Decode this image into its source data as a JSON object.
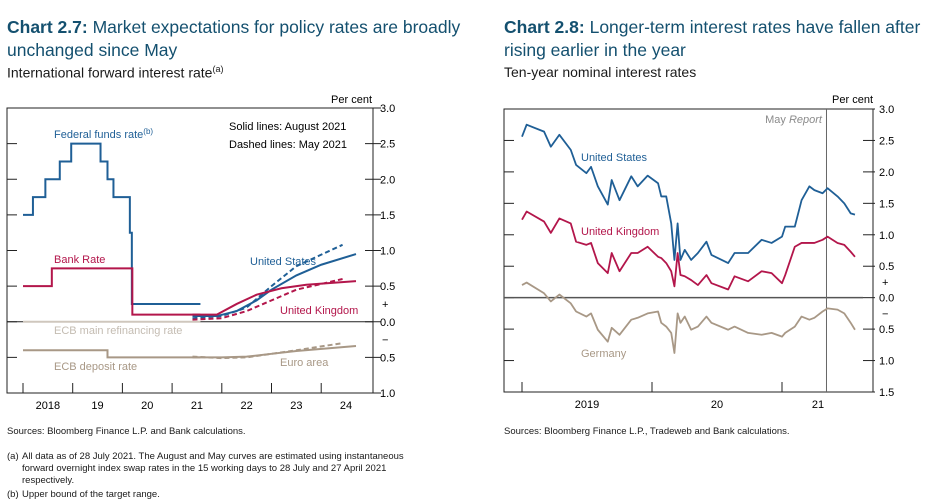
{
  "left": {
    "chart_no": "Chart 2.7:",
    "title": "Market expectations for policy rates are broadly unchanged since May",
    "subtitle": "International forward interest rate",
    "subtitle_note": "(a)",
    "source": "Sources: Bloomberg Finance L.P. and Bank calculations.",
    "footnotes": [
      {
        "label": "(a)",
        "text": "All data as of 28 July 2021. The August and May curves are estimated using instantaneous forward overnight index swap rates in the 15 working days to 28 July and 27 April 2021 respectively."
      },
      {
        "label": "(b)",
        "text": "Upper bound of the target range."
      }
    ]
  },
  "right": {
    "chart_no": "Chart 2.8:",
    "title": "Longer-term interest rates have fallen after rising earlier in the year",
    "subtitle": "Ten-year nominal interest rates",
    "source": "Sources: Bloomberg Finance L.P., Tradeweb and Bank calculations."
  },
  "chart_data": [
    {
      "type": "line",
      "title": "Market expectations for policy rates are broadly unchanged since May",
      "ylabel": "Per cent",
      "ylim": [
        -1.0,
        3.0
      ],
      "xlim": [
        2017.7,
        2024.8
      ],
      "xticks": [
        "2018",
        "19",
        "20",
        "21",
        "22",
        "23",
        "24"
      ],
      "yticks": [
        {
          "v": 3.0,
          "l": "3.0"
        },
        {
          "v": 2.5,
          "l": "2.5"
        },
        {
          "v": 2.0,
          "l": "2.0"
        },
        {
          "v": 1.5,
          "l": "1.5"
        },
        {
          "v": 1.0,
          "l": "1.0"
        },
        {
          "v": 0.5,
          "l": "0.5"
        },
        {
          "v": 0.25,
          "l": "+"
        },
        {
          "v": 0.0,
          "l": "0.0"
        },
        {
          "v": -0.25,
          "l": "−"
        },
        {
          "v": -0.5,
          "l": "0.5"
        },
        {
          "v": -1.0,
          "l": "1.0"
        }
      ],
      "annotations": {
        "solid": "Solid lines: August 2021",
        "dashed": "Dashed lines: May 2021"
      },
      "labels": {
        "ffr": "Federal funds rate",
        "ffr_note": "(b)",
        "bank_rate": "Bank Rate",
        "us": "United States",
        "uk": "United Kingdom",
        "ecb_main": "ECB main refinancing rate",
        "ecb_dep": "ECB deposit rate",
        "euro": "Euro area"
      },
      "colors": {
        "us": "#1f5f96",
        "uk": "#b3164b",
        "ecb_main": "#cfc7bd",
        "euro": "#a89886"
      },
      "series": [
        {
          "name": "Federal funds rate",
          "color": "us",
          "dash": false,
          "step": true,
          "points": [
            [
              2018.0,
              1.5
            ],
            [
              2018.2,
              1.75
            ],
            [
              2018.45,
              2.0
            ],
            [
              2018.74,
              2.25
            ],
            [
              2018.97,
              2.5
            ],
            [
              2019.56,
              2.25
            ],
            [
              2019.7,
              2.0
            ],
            [
              2019.82,
              1.75
            ],
            [
              2020.15,
              1.25
            ],
            [
              2020.19,
              0.25
            ],
            [
              2021.57,
              0.25
            ]
          ]
        },
        {
          "name": "Bank Rate",
          "color": "uk",
          "dash": false,
          "step": true,
          "points": [
            [
              2018.0,
              0.5
            ],
            [
              2018.58,
              0.75
            ],
            [
              2020.15,
              0.75
            ],
            [
              2020.2,
              0.1
            ],
            [
              2021.57,
              0.1
            ]
          ]
        },
        {
          "name": "ECB main refinancing rate",
          "color": "ecb_main",
          "dash": false,
          "step": true,
          "points": [
            [
              2018.0,
              0.0
            ],
            [
              2021.57,
              0.0
            ]
          ]
        },
        {
          "name": "ECB deposit rate",
          "color": "euro",
          "dash": false,
          "step": true,
          "points": [
            [
              2018.0,
              -0.4
            ],
            [
              2019.7,
              -0.5
            ],
            [
              2021.57,
              -0.5
            ]
          ]
        },
        {
          "name": "United States",
          "color": "us",
          "dash": false,
          "step": false,
          "points": [
            [
              2021.41,
              0.08
            ],
            [
              2021.9,
              0.08
            ],
            [
              2022.3,
              0.15
            ],
            [
              2022.7,
              0.3
            ],
            [
              2023.0,
              0.45
            ],
            [
              2023.5,
              0.65
            ],
            [
              2024.0,
              0.8
            ],
            [
              2024.7,
              0.95
            ]
          ]
        },
        {
          "name": "United States",
          "color": "us",
          "dash": true,
          "step": false,
          "points": [
            [
              2021.41,
              0.05
            ],
            [
              2022.0,
              0.08
            ],
            [
              2022.5,
              0.2
            ],
            [
              2023.0,
              0.5
            ],
            [
              2023.5,
              0.78
            ],
            [
              2024.43,
              1.08
            ]
          ]
        },
        {
          "name": "United Kingdom",
          "color": "uk",
          "dash": false,
          "step": false,
          "points": [
            [
              2021.41,
              0.1
            ],
            [
              2021.9,
              0.1
            ],
            [
              2022.3,
              0.25
            ],
            [
              2022.7,
              0.38
            ],
            [
              2023.2,
              0.47
            ],
            [
              2023.7,
              0.52
            ],
            [
              2024.7,
              0.57
            ]
          ]
        },
        {
          "name": "United Kingdom",
          "color": "uk",
          "dash": true,
          "step": false,
          "points": [
            [
              2021.41,
              0.03
            ],
            [
              2022.0,
              0.05
            ],
            [
              2022.5,
              0.15
            ],
            [
              2023.0,
              0.3
            ],
            [
              2023.5,
              0.45
            ],
            [
              2024.43,
              0.6
            ]
          ]
        },
        {
          "name": "Euro area",
          "color": "euro",
          "dash": false,
          "step": false,
          "points": [
            [
              2021.41,
              -0.5
            ],
            [
              2022.0,
              -0.5
            ],
            [
              2022.5,
              -0.49
            ],
            [
              2023.0,
              -0.45
            ],
            [
              2023.5,
              -0.41
            ],
            [
              2024.7,
              -0.34
            ]
          ]
        },
        {
          "name": "Euro area",
          "color": "euro",
          "dash": true,
          "step": false,
          "points": [
            [
              2021.41,
              -0.49
            ],
            [
              2022.0,
              -0.51
            ],
            [
              2022.5,
              -0.5
            ],
            [
              2023.0,
              -0.45
            ],
            [
              2023.5,
              -0.4
            ],
            [
              2024.43,
              -0.3
            ]
          ]
        }
      ]
    },
    {
      "type": "line",
      "title": "Longer-term interest rates have fallen after rising earlier in the year",
      "ylabel": "Per cent",
      "ylim": [
        -1.5,
        3.0
      ],
      "xlim": [
        "2018-09-01",
        "2021-09-01"
      ],
      "xticks": [
        "2019",
        "20",
        "21"
      ],
      "yticks": [
        {
          "v": 3.0,
          "l": "3.0"
        },
        {
          "v": 2.5,
          "l": "2.5"
        },
        {
          "v": 2.0,
          "l": "2.0"
        },
        {
          "v": 1.5,
          "l": "1.5"
        },
        {
          "v": 1.0,
          "l": "1.0"
        },
        {
          "v": 0.5,
          "l": "0.5"
        },
        {
          "v": 0.25,
          "l": "+"
        },
        {
          "v": 0.0,
          "l": "0.0"
        },
        {
          "v": -0.25,
          "l": "−"
        },
        {
          "v": -0.5,
          "l": "0.5"
        },
        {
          "v": -1.0,
          "l": "1.0"
        },
        {
          "v": -1.5,
          "l": "1.5"
        }
      ],
      "annotations": {
        "may_report": "May",
        "may_report_italic": "Report",
        "may_report_date": "2021-05-06"
      },
      "colors": {
        "us": "#1f5f96",
        "uk": "#b3164b",
        "de": "#a89886"
      },
      "dates": [
        "2019-01-01",
        "2019-01-14",
        "2019-03-04",
        "2019-03-23",
        "2019-04-16",
        "2019-05-18",
        "2019-06-02",
        "2019-07-01",
        "2019-07-14",
        "2019-08-02",
        "2019-08-30",
        "2019-09-10",
        "2019-10-02",
        "2019-11-04",
        "2019-11-22",
        "2019-12-20",
        "2020-01-18",
        "2020-01-27",
        "2020-02-10",
        "2020-02-24",
        "2020-03-04",
        "2020-03-13",
        "2020-03-21",
        "2020-04-02",
        "2020-04-20",
        "2020-05-09",
        "2020-06-02",
        "2020-06-16",
        "2020-08-02",
        "2020-08-20",
        "2020-09-27",
        "2020-11-04",
        "2020-12-02",
        "2021-01-01",
        "2021-01-10",
        "2021-02-06",
        "2021-02-25",
        "2021-03-19",
        "2021-04-02",
        "2021-04-25",
        "2021-05-09",
        "2021-06-06",
        "2021-06-25",
        "2021-07-13",
        "2021-07-25"
      ],
      "series": [
        {
          "name": "United States",
          "color": "us",
          "values": [
            2.56,
            2.75,
            2.64,
            2.4,
            2.59,
            2.35,
            2.11,
            1.98,
            2.08,
            1.77,
            1.48,
            1.87,
            1.55,
            1.93,
            1.77,
            1.94,
            1.82,
            1.61,
            1.61,
            1.18,
            0.6,
            1.18,
            0.6,
            0.76,
            0.6,
            0.71,
            0.89,
            0.68,
            0.55,
            0.71,
            0.71,
            0.92,
            0.87,
            0.97,
            1.13,
            1.13,
            1.55,
            1.77,
            1.71,
            1.66,
            1.74,
            1.61,
            1.5,
            1.34,
            1.32
          ]
        },
        {
          "name": "United Kingdom",
          "color": "uk",
          "values": [
            1.24,
            1.37,
            1.21,
            1.03,
            1.26,
            1.18,
            0.89,
            0.84,
            0.87,
            0.55,
            0.39,
            0.71,
            0.42,
            0.71,
            0.71,
            0.81,
            0.65,
            0.63,
            0.55,
            0.42,
            0.18,
            0.71,
            0.36,
            0.34,
            0.28,
            0.2,
            0.36,
            0.23,
            0.13,
            0.34,
            0.26,
            0.42,
            0.39,
            0.23,
            0.36,
            0.81,
            0.87,
            0.87,
            0.87,
            0.92,
            0.97,
            0.87,
            0.84,
            0.73,
            0.65
          ]
        },
        {
          "name": "Germany",
          "color": "de",
          "values": [
            0.2,
            0.24,
            0.07,
            -0.06,
            0.05,
            -0.09,
            -0.22,
            -0.3,
            -0.25,
            -0.51,
            -0.7,
            -0.48,
            -0.59,
            -0.35,
            -0.32,
            -0.25,
            -0.22,
            -0.4,
            -0.46,
            -0.56,
            -0.88,
            -0.25,
            -0.4,
            -0.3,
            -0.51,
            -0.46,
            -0.3,
            -0.4,
            -0.51,
            -0.46,
            -0.56,
            -0.59,
            -0.56,
            -0.62,
            -0.56,
            -0.46,
            -0.3,
            -0.35,
            -0.32,
            -0.22,
            -0.17,
            -0.19,
            -0.25,
            -0.4,
            -0.51
          ]
        }
      ]
    }
  ]
}
